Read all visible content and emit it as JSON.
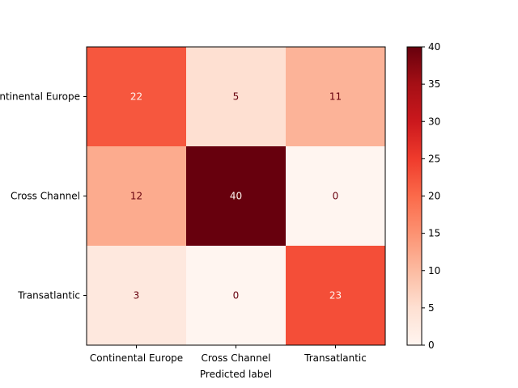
{
  "chart_data": {
    "type": "heatmap",
    "title": "",
    "xlabel": "Predicted label",
    "ylabel": "",
    "x_categories": [
      "Continental Europe",
      "Cross Channel",
      "Transatlantic"
    ],
    "y_categories": [
      "Continental Europe",
      "Cross Channel",
      "Transatlantic"
    ],
    "values": [
      [
        22,
        5,
        11
      ],
      [
        12,
        40,
        0
      ],
      [
        3,
        0,
        23
      ]
    ],
    "colormap": "Reds",
    "colorbar": {
      "range": [
        0,
        40
      ],
      "ticks": [
        0,
        5,
        10,
        15,
        20,
        25,
        30,
        35,
        40
      ]
    },
    "grid": false,
    "legend": "colorbar-right"
  }
}
